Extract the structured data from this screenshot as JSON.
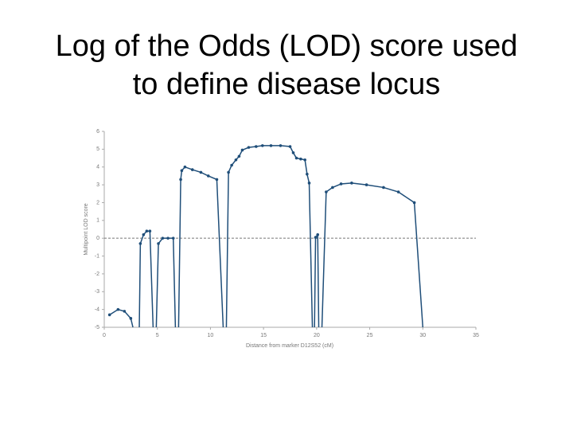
{
  "chart_data": {
    "type": "line",
    "title": "Log of the Odds (LOD) score used to define disease locus",
    "x_label": "Distance from marker D12S52 (cM)",
    "y_label": "Multipoint LOD score",
    "xlim": [
      0,
      35
    ],
    "xticks": [
      0,
      5,
      10,
      15,
      20,
      25,
      30,
      35
    ],
    "ylim": [
      -5,
      6
    ],
    "yticks": [
      -5,
      -4,
      -3,
      -2,
      -1,
      0,
      1,
      2,
      3,
      4,
      5,
      6
    ],
    "reference_line": 0,
    "series": [
      {
        "color": "#1f4e79",
        "x": [
          0.5,
          1.3,
          1.9,
          2.5,
          2.7,
          null,
          3.3,
          3.4,
          3.7,
          4.0,
          4.3,
          4.6,
          null,
          4.9,
          5.1,
          5.5,
          6.0,
          6.5,
          6.7,
          null,
          7.0,
          7.2,
          7.3,
          7.6,
          8.3,
          9.1,
          9.8,
          10.6,
          11.2,
          null,
          11.5,
          11.7,
          12.0,
          12.4,
          12.7,
          13.0,
          13.6,
          14.3,
          14.9,
          15.7,
          16.6,
          17.5,
          17.8,
          18.1,
          18.5,
          18.9,
          19.1,
          19.3,
          19.6,
          null,
          19.8,
          19.9,
          20.1,
          20.2,
          null,
          20.5,
          20.9,
          21.5,
          22.3,
          23.3,
          24.7,
          26.3,
          27.7,
          29.2,
          30.0
        ],
        "values": [
          -4.3,
          -4.0,
          -4.1,
          -4.5,
          -5,
          null,
          -5,
          -0.3,
          0.2,
          0.4,
          0.4,
          -5,
          null,
          -5,
          -0.3,
          0,
          0,
          0,
          -5,
          null,
          -5,
          3.3,
          3.8,
          4.0,
          3.85,
          3.7,
          3.5,
          3.3,
          -5,
          null,
          -5,
          3.7,
          4.1,
          4.4,
          4.6,
          4.95,
          5.1,
          5.15,
          5.2,
          5.2,
          5.2,
          5.15,
          4.8,
          4.5,
          4.45,
          4.4,
          3.6,
          3.1,
          -5,
          null,
          -5,
          0.05,
          0.2,
          -5,
          null,
          -5,
          2.6,
          2.85,
          3.05,
          3.1,
          3.0,
          2.85,
          2.6,
          2.0,
          -5
        ]
      }
    ]
  }
}
